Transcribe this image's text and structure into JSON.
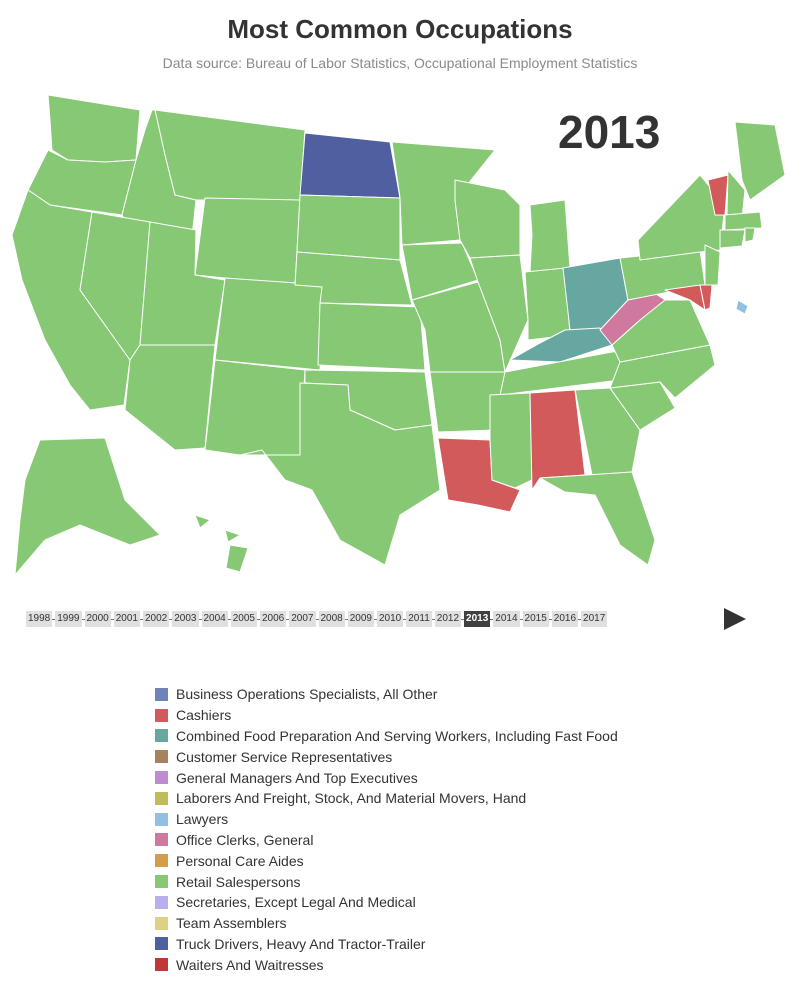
{
  "title": "Most Common Occupations",
  "subtitle": "Data source: Bureau of Labor Statistics, Occupational Employment Statistics",
  "current_year": "2013",
  "timeline": {
    "years": [
      "1998",
      "1999",
      "2000",
      "2001",
      "2002",
      "2003",
      "2004",
      "2005",
      "2006",
      "2007",
      "2008",
      "2009",
      "2010",
      "2011",
      "2012",
      "2013",
      "2014",
      "2015",
      "2016",
      "2017"
    ],
    "selected": "2013",
    "play_icon": "play-icon"
  },
  "legend": [
    {
      "label": "Business Operations Specialists, All Other",
      "color": "#6f83b9"
    },
    {
      "label": "Cashiers",
      "color": "#d35a5b"
    },
    {
      "label": "Combined Food Preparation And Serving Workers, Including Fast Food",
      "color": "#66a7a1"
    },
    {
      "label": "Customer Service Representatives",
      "color": "#a6825d"
    },
    {
      "label": "General Managers And Top Executives",
      "color": "#be8bd0"
    },
    {
      "label": "Laborers And Freight, Stock, And Material Movers, Hand",
      "color": "#bebc5b"
    },
    {
      "label": "Lawyers",
      "color": "#92c0e3"
    },
    {
      "label": "Office Clerks, General",
      "color": "#d0799f"
    },
    {
      "label": "Personal Care Aides",
      "color": "#d49c4d"
    },
    {
      "label": "Retail Salespersons",
      "color": "#86c873"
    },
    {
      "label": "Secretaries, Except Legal And Medical",
      "color": "#b8afee"
    },
    {
      "label": "Team Assemblers",
      "color": "#ded282"
    },
    {
      "label": "Truck Drivers, Heavy And Tractor-Trailer",
      "color": "#4f5f9f"
    },
    {
      "label": "Waiters And Waitresses",
      "color": "#c13639"
    }
  ],
  "map_data": {
    "year": "2013",
    "default_occupation": "Retail Salespersons",
    "exceptions": {
      "North Dakota": "Truck Drivers, Heavy And Tractor-Trailer",
      "Vermont": "Cashiers",
      "Louisiana": "Cashiers",
      "Alabama": "Cashiers",
      "Maryland": "Cashiers",
      "Delaware": "Cashiers",
      "Ohio": "Combined Food Preparation And Serving Workers, Including Fast Food",
      "Kentucky": "Combined Food Preparation And Serving Workers, Including Fast Food",
      "West Virginia": "Office Clerks, General",
      "District of Columbia": "Lawyers"
    }
  }
}
